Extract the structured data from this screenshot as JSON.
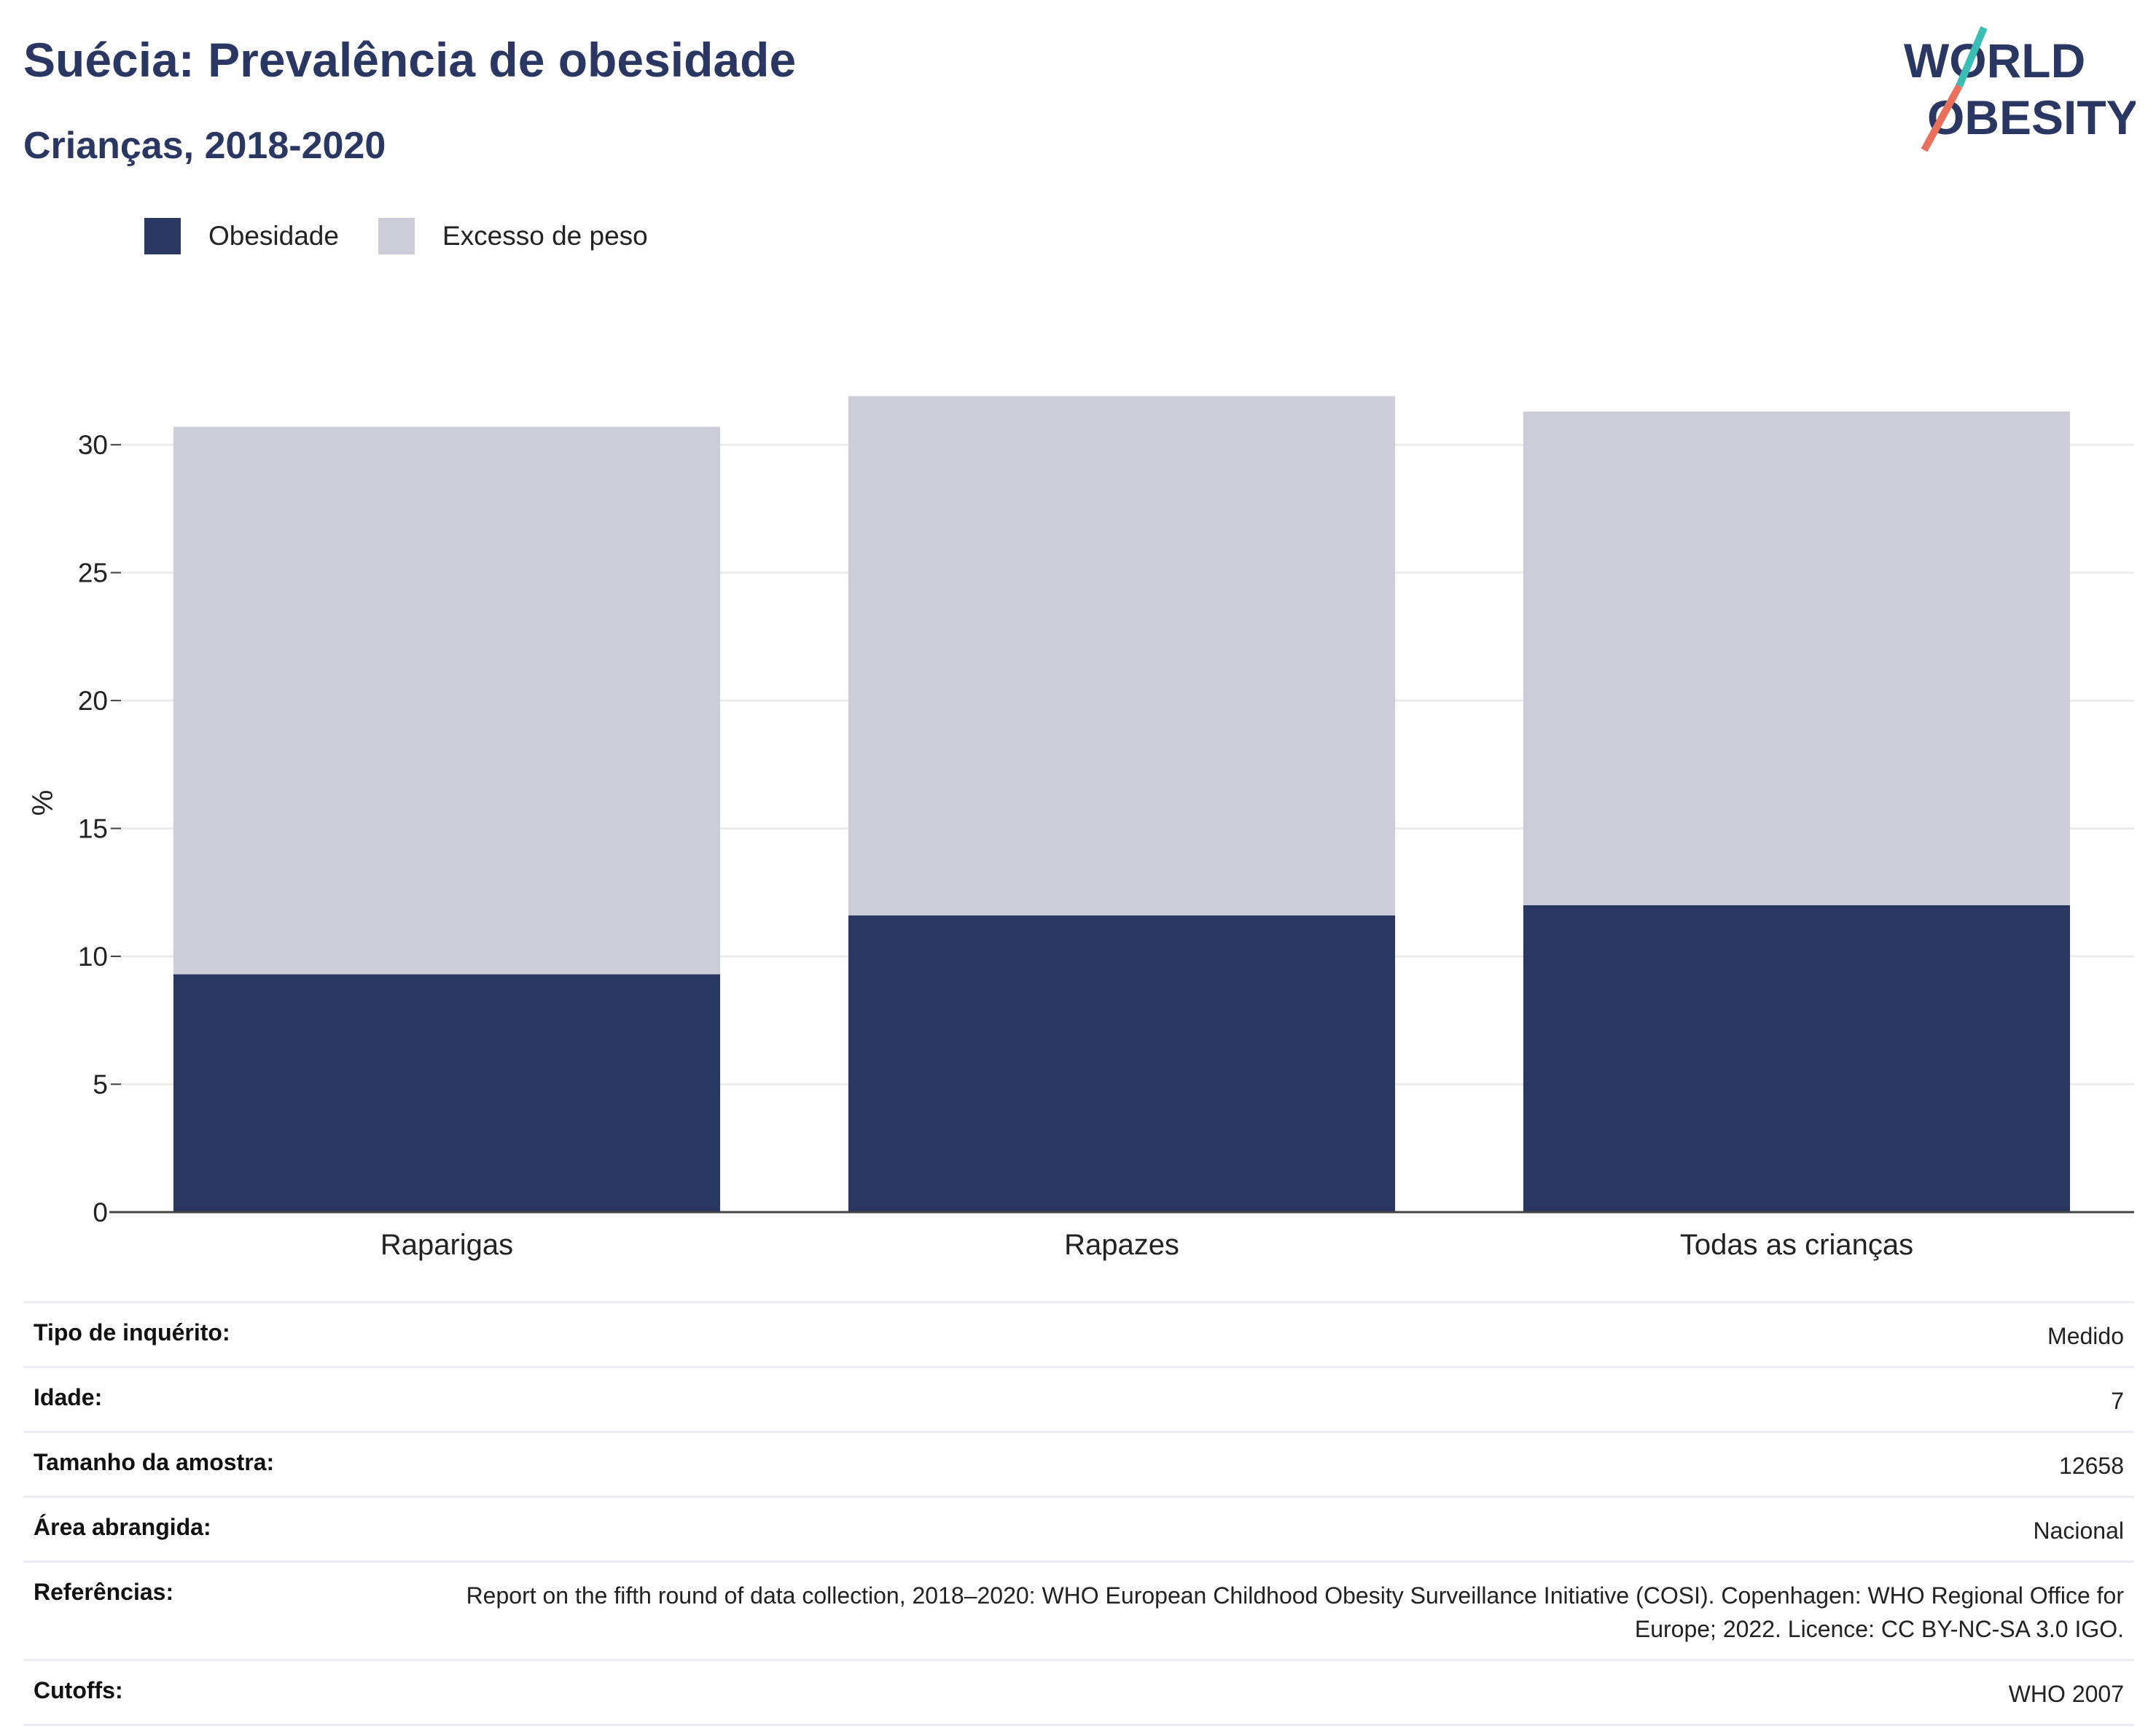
{
  "header": {
    "title": "Suécia: Prevalência de obesidade",
    "subtitle": "Crianças, 2018-2020"
  },
  "logo": {
    "line1": "WORLD",
    "line2": "OBESITY"
  },
  "colors": {
    "obesity": "#2b3763",
    "overweight": "#cbccd8",
    "text": "#2b3763",
    "logo_teal": "#3bbdb4",
    "logo_coral": "#e8705d"
  },
  "chart_data": {
    "type": "bar",
    "stacked": true,
    "categories": [
      "Raparigas",
      "Rapazes",
      "Todas as crianças"
    ],
    "series": [
      {
        "name": "Obesidade",
        "values": [
          9.3,
          11.6,
          12.0
        ]
      },
      {
        "name": "Excesso de peso",
        "values": [
          21.4,
          20.3,
          19.3
        ]
      }
    ],
    "totals": [
      30.7,
      31.9,
      31.3
    ],
    "ylabel": "%",
    "ylim": [
      0,
      32
    ],
    "yticks": [
      0,
      5,
      10,
      15,
      20,
      25,
      30
    ],
    "grid": true,
    "legend_position": "top-left"
  },
  "info": [
    {
      "key": "Tipo de inquérito:",
      "value": "Medido"
    },
    {
      "key": "Idade:",
      "value": "7"
    },
    {
      "key": "Tamanho da amostra:",
      "value": "12658"
    },
    {
      "key": "Área abrangida:",
      "value": "Nacional"
    },
    {
      "key": "Referências:",
      "value": "Report on the fifth round of data collection, 2018–2020: WHO European Childhood Obesity Surveillance Initiative (COSI). Copenhagen: WHO Regional Office for Europe; 2022. Licence: CC BY-NC-SA 3.0 IGO."
    },
    {
      "key": "Cutoffs:",
      "value": "WHO 2007"
    }
  ]
}
